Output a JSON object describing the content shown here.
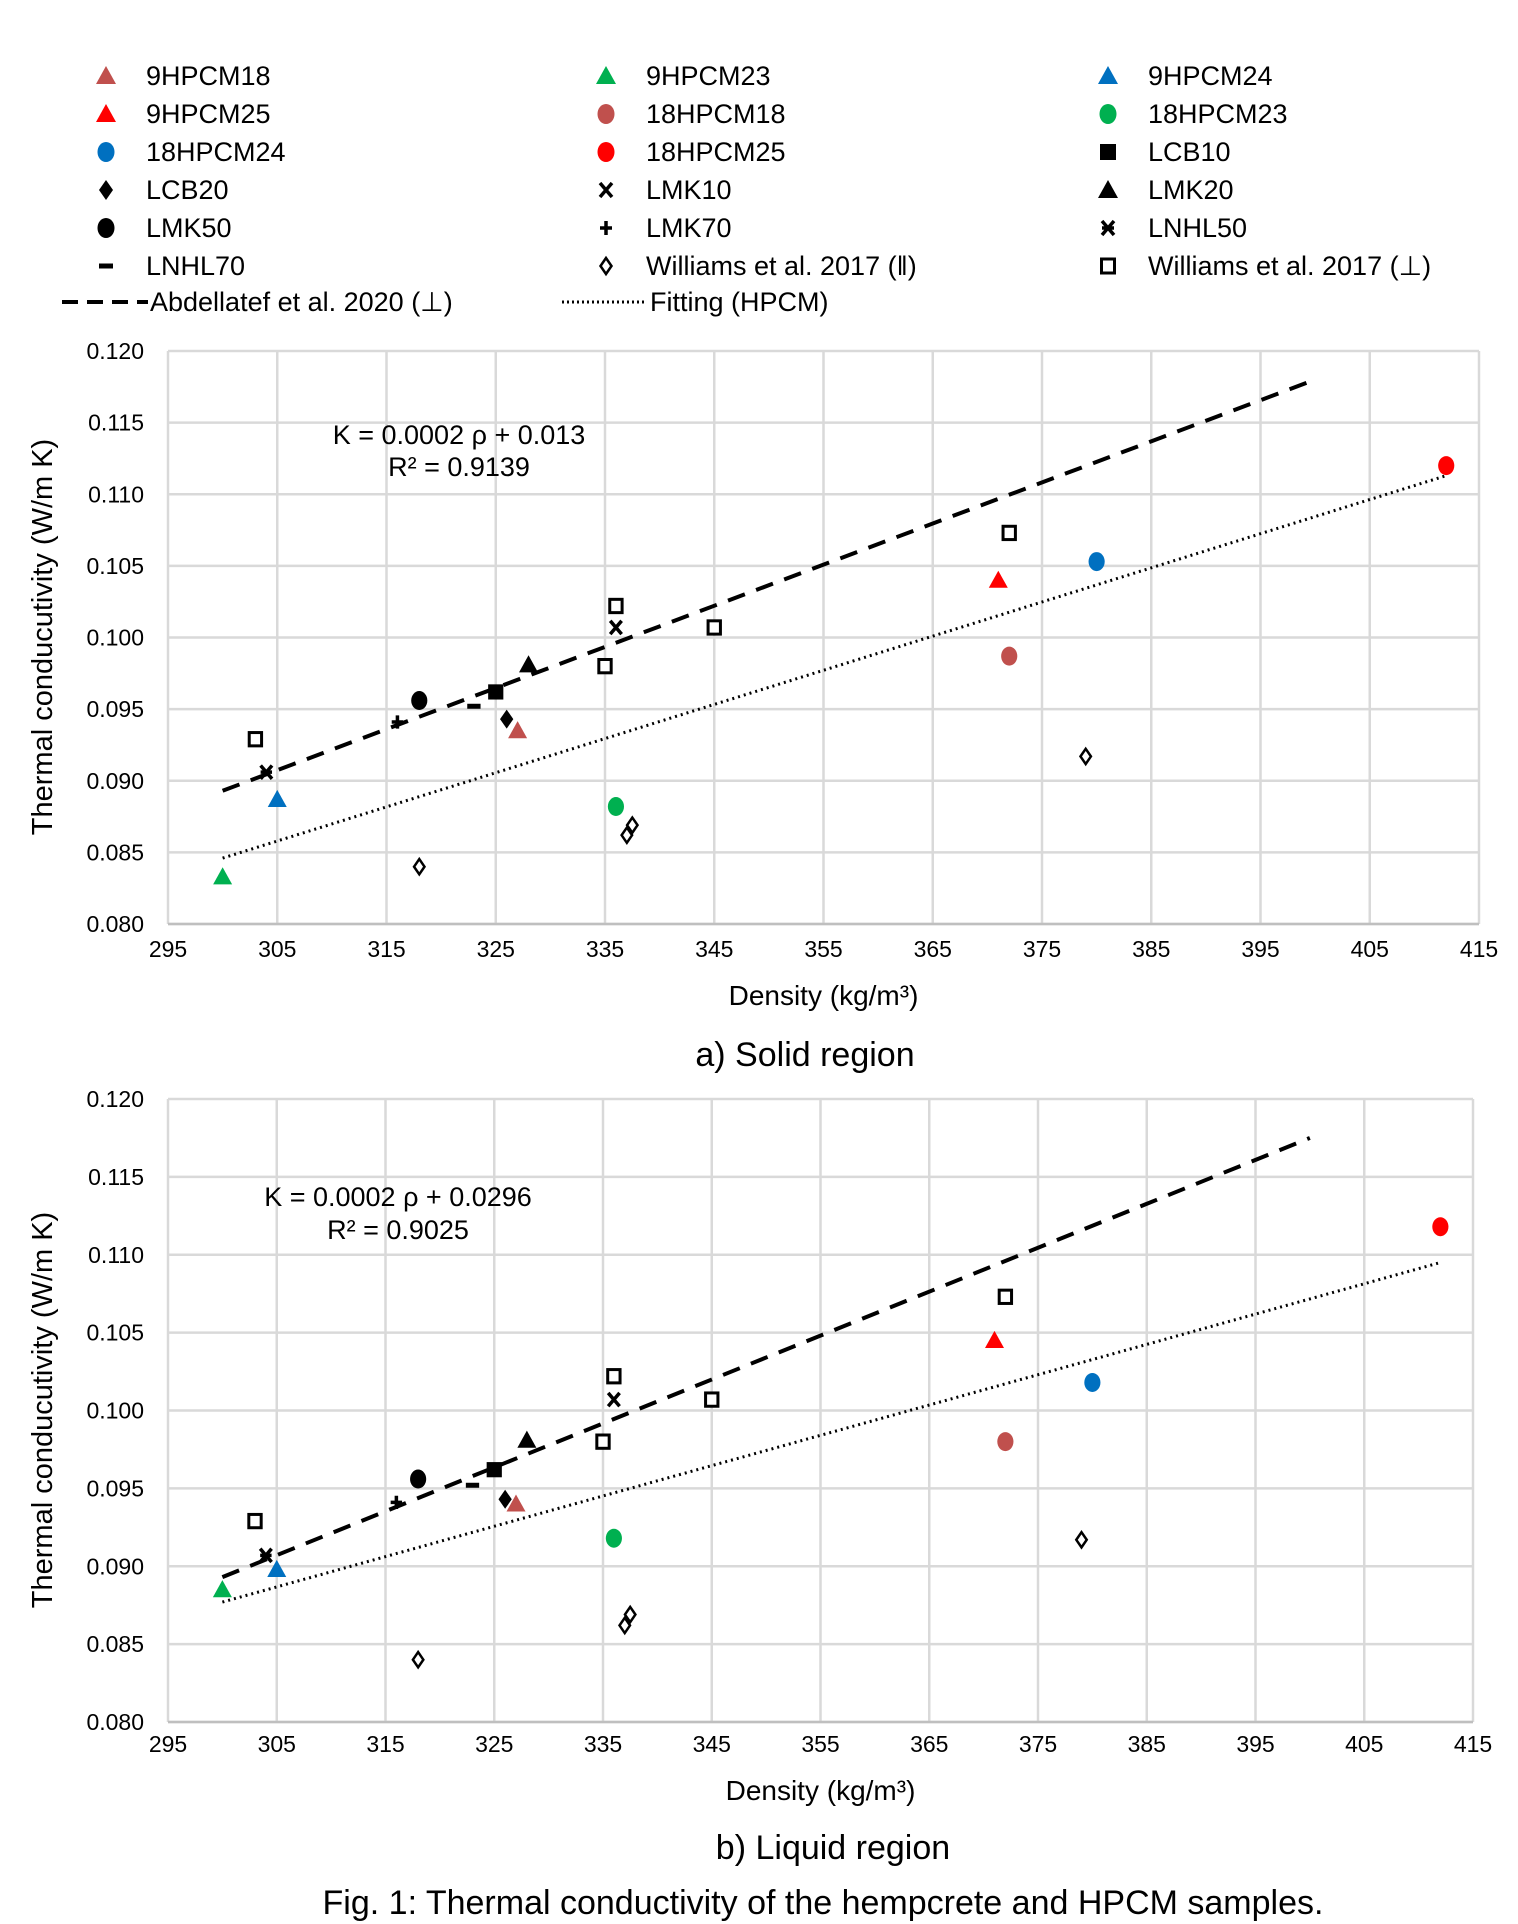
{
  "legend": [
    {
      "id": "9HPCM18",
      "label": "9HPCM18",
      "shape": "triangle",
      "color": "#C0504D"
    },
    {
      "id": "9HPCM23",
      "label": "9HPCM23",
      "shape": "triangle",
      "color": "#00B050"
    },
    {
      "id": "9HPCM24",
      "label": "9HPCM24",
      "shape": "triangle",
      "color": "#0070C0"
    },
    {
      "id": "9HPCM25",
      "label": "9HPCM25",
      "shape": "triangle",
      "color": "#FF0000"
    },
    {
      "id": "18HPCM18",
      "label": "18HPCM18",
      "shape": "circle",
      "color": "#C0504D"
    },
    {
      "id": "18HPCM23",
      "label": "18HPCM23",
      "shape": "circle",
      "color": "#00B050"
    },
    {
      "id": "18HPCM24",
      "label": "18HPCM24",
      "shape": "circle",
      "color": "#0070C0"
    },
    {
      "id": "18HPCM25",
      "label": "18HPCM25",
      "shape": "circle",
      "color": "#FF0000"
    },
    {
      "id": "LCB10",
      "label": "LCB10",
      "shape": "square",
      "color": "#000000"
    },
    {
      "id": "LCB20",
      "label": "LCB20",
      "shape": "diamond",
      "color": "#000000"
    },
    {
      "id": "LMK10",
      "label": "LMK10",
      "shape": "x",
      "color": "#000000"
    },
    {
      "id": "LMK20",
      "label": "LMK20",
      "shape": "triangle",
      "color": "#000000"
    },
    {
      "id": "LMK50",
      "label": "LMK50",
      "shape": "circle",
      "color": "#000000"
    },
    {
      "id": "LMK70",
      "label": "LMK70",
      "shape": "plus",
      "color": "#000000"
    },
    {
      "id": "LNHL50",
      "label": "LNHL50",
      "shape": "star",
      "color": "#000000"
    },
    {
      "id": "LNHL70",
      "label": "LNHL70",
      "shape": "dash",
      "color": "#000000"
    },
    {
      "id": "W_par",
      "label": "Williams et al. 2017 (‖)",
      "shape": "open-diamond",
      "color": "#000000"
    },
    {
      "id": "W_perp",
      "label": "Williams et al. 2017 (⊥)",
      "shape": "open-square",
      "color": "#000000"
    },
    {
      "id": "Abd",
      "label": "Abdellatef et al. 2020 (⊥)",
      "shape": "dashed-line",
      "color": "#000000"
    },
    {
      "id": "Fit",
      "label": "Fitting (HPCM)",
      "shape": "dotted-line",
      "color": "#000000"
    }
  ],
  "chart_data": [
    {
      "type": "scatter",
      "title": "a) Solid region",
      "xlabel": "Density (kg/m³)",
      "ylabel": "Thermal conducutivity (W/m K)",
      "xlim": [
        295,
        415
      ],
      "ylim": [
        0.08,
        0.12
      ],
      "xticks": [
        "295",
        "305",
        "315",
        "325",
        "335",
        "345",
        "355",
        "365",
        "375",
        "385",
        "395",
        "405",
        "415"
      ],
      "yticks": [
        "0.080",
        "0.085",
        "0.090",
        "0.095",
        "0.100",
        "0.105",
        "0.110",
        "0.115",
        "0.120"
      ],
      "grid": true,
      "equation": "K = 0.0002 ρ + 0.013",
      "r2": "R² = 0.9139",
      "series": [
        {
          "name": "9HPCM18",
          "points": [
            [
              327,
              0.0935
            ]
          ]
        },
        {
          "name": "9HPCM23",
          "points": [
            [
              300,
              0.0833
            ]
          ]
        },
        {
          "name": "9HPCM24",
          "points": [
            [
              305,
              0.0887
            ]
          ]
        },
        {
          "name": "9HPCM25",
          "points": [
            [
              371,
              0.104
            ]
          ]
        },
        {
          "name": "18HPCM18",
          "points": [
            [
              372,
              0.0987
            ]
          ]
        },
        {
          "name": "18HPCM23",
          "points": [
            [
              336,
              0.0882
            ]
          ]
        },
        {
          "name": "18HPCM24",
          "points": [
            [
              380,
              0.1053
            ]
          ]
        },
        {
          "name": "18HPCM25",
          "points": [
            [
              412,
              0.112
            ]
          ]
        },
        {
          "name": "LCB10",
          "points": [
            [
              325,
              0.0962
            ]
          ]
        },
        {
          "name": "LCB20",
          "points": [
            [
              326,
              0.0943
            ]
          ]
        },
        {
          "name": "LMK10",
          "points": [
            [
              336,
              0.1007
            ]
          ]
        },
        {
          "name": "LMK20",
          "points": [
            [
              328,
              0.0981
            ]
          ]
        },
        {
          "name": "LMK50",
          "points": [
            [
              318,
              0.0956
            ]
          ]
        },
        {
          "name": "LMK70",
          "points": [
            [
              316,
              0.0941
            ]
          ]
        },
        {
          "name": "LNHL50",
          "points": [
            [
              304,
              0.0906
            ]
          ]
        },
        {
          "name": "LNHL70",
          "points": [
            [
              323,
              0.0952
            ]
          ]
        },
        {
          "name": "W_par",
          "points": [
            [
              318,
              0.084
            ],
            [
              337,
              0.0862
            ],
            [
              337.5,
              0.0869
            ],
            [
              379,
              0.0917
            ]
          ]
        },
        {
          "name": "W_perp",
          "points": [
            [
              303,
              0.0929
            ],
            [
              335,
              0.098
            ],
            [
              336,
              0.1022
            ],
            [
              345,
              0.1007
            ],
            [
              372,
              0.1073
            ]
          ]
        }
      ],
      "lines": [
        {
          "name": "Abd",
          "from": [
            300,
            0.0893
          ],
          "to": [
            400,
            0.118
          ]
        },
        {
          "name": "Fit",
          "from": [
            300,
            0.0846
          ],
          "to": [
            412,
            0.1113
          ]
        }
      ]
    },
    {
      "type": "scatter",
      "title": "b) Liquid region",
      "xlabel": "Density (kg/m³)",
      "ylabel": "Thermal conducutivity (W/m K)",
      "xlim": [
        295,
        415
      ],
      "ylim": [
        0.08,
        0.12
      ],
      "xticks": [
        "295",
        "305",
        "315",
        "325",
        "335",
        "345",
        "355",
        "365",
        "375",
        "385",
        "395",
        "405",
        "415"
      ],
      "yticks": [
        "0.080",
        "0.085",
        "0.090",
        "0.095",
        "0.100",
        "0.105",
        "0.110",
        "0.115",
        "0.120"
      ],
      "grid": true,
      "equation": "K = 0.0002 ρ + 0.0296",
      "r2": "R² = 0.9025",
      "series": [
        {
          "name": "9HPCM18",
          "points": [
            [
              327,
              0.094
            ]
          ]
        },
        {
          "name": "9HPCM23",
          "points": [
            [
              300,
              0.0885
            ]
          ]
        },
        {
          "name": "9HPCM24",
          "points": [
            [
              305,
              0.0898
            ]
          ]
        },
        {
          "name": "9HPCM25",
          "points": [
            [
              371,
              0.1045
            ]
          ]
        },
        {
          "name": "18HPCM18",
          "points": [
            [
              372,
              0.098
            ]
          ]
        },
        {
          "name": "18HPCM23",
          "points": [
            [
              336,
              0.0918
            ]
          ]
        },
        {
          "name": "18HPCM24",
          "points": [
            [
              380,
              0.1018
            ]
          ]
        },
        {
          "name": "18HPCM25",
          "points": [
            [
              412,
              0.1118
            ]
          ]
        },
        {
          "name": "LCB10",
          "points": [
            [
              325,
              0.0962
            ]
          ]
        },
        {
          "name": "LCB20",
          "points": [
            [
              326,
              0.0943
            ]
          ]
        },
        {
          "name": "LMK10",
          "points": [
            [
              336,
              0.1007
            ]
          ]
        },
        {
          "name": "LMK20",
          "points": [
            [
              328,
              0.0981
            ]
          ]
        },
        {
          "name": "LMK50",
          "points": [
            [
              318,
              0.0956
            ]
          ]
        },
        {
          "name": "LMK70",
          "points": [
            [
              316,
              0.0941
            ]
          ]
        },
        {
          "name": "LNHL50",
          "points": [
            [
              304,
              0.0907
            ]
          ]
        },
        {
          "name": "LNHL70",
          "points": [
            [
              323,
              0.0952
            ]
          ]
        },
        {
          "name": "W_par",
          "points": [
            [
              318,
              0.084
            ],
            [
              337,
              0.0862
            ],
            [
              337.5,
              0.0869
            ],
            [
              379,
              0.0917
            ]
          ]
        },
        {
          "name": "W_perp",
          "points": [
            [
              303,
              0.0929
            ],
            [
              335,
              0.098
            ],
            [
              336,
              0.1022
            ],
            [
              345,
              0.1007
            ],
            [
              372,
              0.1073
            ]
          ]
        }
      ],
      "lines": [
        {
          "name": "Abd",
          "from": [
            300,
            0.0893
          ],
          "to": [
            400,
            0.1175
          ]
        },
        {
          "name": "Fit",
          "from": [
            300,
            0.0877
          ],
          "to": [
            412,
            0.1095
          ]
        }
      ]
    }
  ],
  "figure_caption": "Fig. 1: Thermal conductivity of the hempcrete and HPCM samples."
}
